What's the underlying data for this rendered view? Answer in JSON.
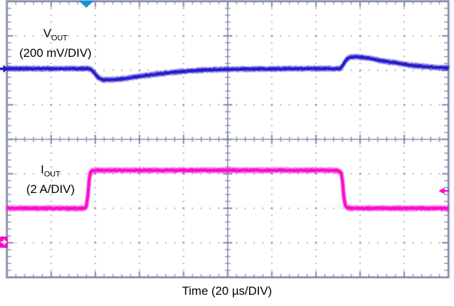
{
  "figure": {
    "background": "#ffffff",
    "grid_color": "#7e87a2",
    "grid_dot_color": "#9097ad",
    "time_label": "Time (20 µs/DIV)"
  },
  "channels": [
    {
      "name": "V",
      "sub": "OUT",
      "scale": "(200 mV/DIV)",
      "color": "#2319cd"
    },
    {
      "name": "I",
      "sub": "OUT",
      "scale": "(2 A/DIV)",
      "color": "#f70cce"
    }
  ],
  "markers": {
    "trigger": {
      "shape": "triangle-down",
      "color": "#1793dc",
      "t_us": 35.9
    },
    "vout_ref": {
      "shape": "arrow-right",
      "color": "#2319cd",
      "level_mv": 0
    },
    "iout_ref": {
      "shape": "flag-arrow-right",
      "color": "#f70cce",
      "level_a": 0
    },
    "iout_cursor": {
      "shape": "arrow-left",
      "color": "#f70cce",
      "level_a": 3.0
    }
  },
  "chart_data": {
    "type": "line",
    "xlabel": "Time (20 µs/DIV)",
    "x_range_us": [
      0,
      200
    ],
    "x_per_div_us": 20,
    "x_divisions": 10,
    "y_divisions": 8,
    "legend": "none (channel labels drawn on plot)",
    "events": {
      "load_step_up_t_us": 36,
      "load_step_down_t_us": 152
    },
    "series": [
      {
        "name": "VOUT",
        "label": "V_OUT (200 mV/DIV)",
        "color": "#2319cd",
        "volts_per_div_mv": 200,
        "baseline_div_from_top": 1.95,
        "units": "mV relative to pre-transient baseline",
        "points": [
          [
            0,
            0
          ],
          [
            36.9,
            0
          ],
          [
            38.2,
            -4
          ],
          [
            40.1,
            -33
          ],
          [
            41.7,
            -57
          ],
          [
            43.9,
            -65
          ],
          [
            47.1,
            -65
          ],
          [
            50.9,
            -61
          ],
          [
            55.6,
            -53
          ],
          [
            62,
            -41
          ],
          [
            69.9,
            -29
          ],
          [
            79.5,
            -16
          ],
          [
            89,
            -8
          ],
          [
            98.6,
            -4
          ],
          [
            111.3,
            -2
          ],
          [
            130.4,
            0
          ],
          [
            150.7,
            0
          ],
          [
            151.7,
            8
          ],
          [
            152.6,
            29
          ],
          [
            153.9,
            53
          ],
          [
            155.2,
            65
          ],
          [
            157.1,
            69
          ],
          [
            159.6,
            67
          ],
          [
            163.8,
            61
          ],
          [
            170.1,
            45
          ],
          [
            176.5,
            33
          ],
          [
            182.8,
            20
          ],
          [
            189.2,
            12
          ],
          [
            195.5,
            6
          ],
          [
            200,
            4
          ]
        ]
      },
      {
        "name": "IOUT",
        "label": "I_OUT (2 A/DIV)",
        "color": "#f70cce",
        "amps_per_div": 2,
        "zero_div_from_top": 7.0,
        "units": "A",
        "points": [
          [
            0,
            2
          ],
          [
            35.3,
            2
          ],
          [
            35.9,
            2.1
          ],
          [
            36.6,
            2.7
          ],
          [
            37.2,
            3.6
          ],
          [
            37.8,
            4.1
          ],
          [
            38.8,
            4.17
          ],
          [
            41.3,
            4.2
          ],
          [
            149.4,
            4.2
          ],
          [
            151.4,
            4.07
          ],
          [
            152,
            3.6
          ],
          [
            152.6,
            2.7
          ],
          [
            153.3,
            2.15
          ],
          [
            154.2,
            2.02
          ],
          [
            155.8,
            2
          ],
          [
            200,
            2
          ]
        ]
      }
    ]
  }
}
